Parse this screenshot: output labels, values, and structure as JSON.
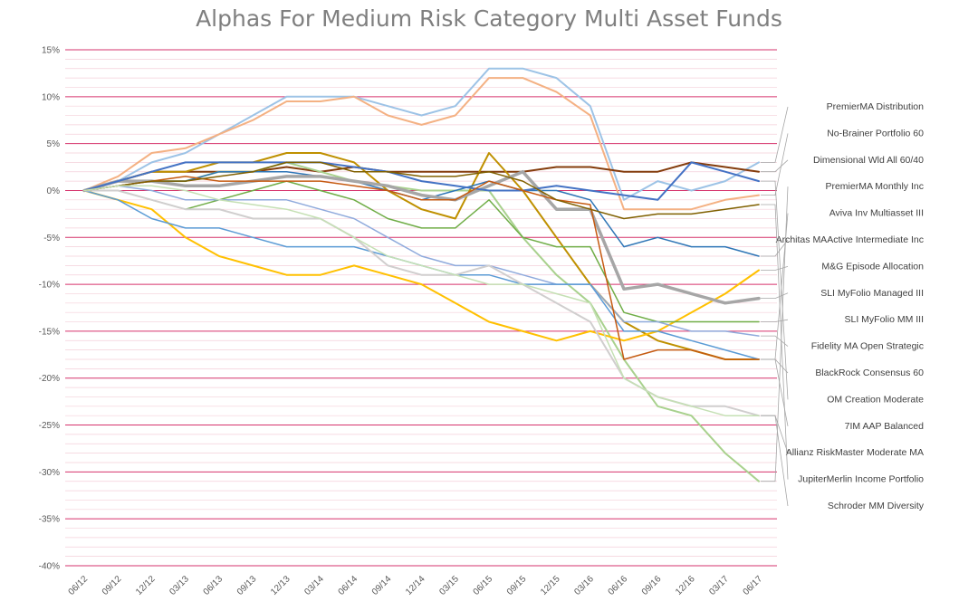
{
  "chart_data": {
    "type": "line",
    "title": "Alphas For Medium Risk Category Multi Asset Funds",
    "xlabel": "",
    "ylabel": "",
    "ylim": [
      -40,
      15
    ],
    "yticks": [
      15,
      10,
      5,
      0,
      -5,
      -10,
      -15,
      -20,
      -25,
      -30,
      -35,
      -40
    ],
    "ytick_labels": [
      "15%",
      "10%",
      "5%",
      "0%",
      "-5%",
      "-10%",
      "-15%",
      "-20%",
      "-25%",
      "-30%",
      "-35%",
      "-40%"
    ],
    "x": [
      "06/12",
      "09/12",
      "12/12",
      "03/13",
      "06/13",
      "09/13",
      "12/13",
      "03/14",
      "06/14",
      "09/14",
      "12/14",
      "03/15",
      "06/15",
      "09/15",
      "12/15",
      "03/16",
      "06/16",
      "09/16",
      "12/16",
      "03/17",
      "06/17"
    ],
    "xtick_labels": [
      "06/12",
      "09/12",
      "12/12",
      "03/13",
      "06/13",
      "09/13",
      "12/13",
      "03/14",
      "06/14",
      "09/14",
      "12/14",
      "03/15",
      "06/15",
      "09/15",
      "12/15",
      "03/16",
      "06/16",
      "09/16",
      "12/16",
      "03/17",
      "06/17"
    ],
    "grid": true,
    "legend_placement": "right",
    "series": [
      {
        "name": "PremierMA Distribution",
        "color": "#9dc3e6",
        "width": 2,
        "values": [
          0,
          1,
          3,
          4,
          6,
          8,
          10,
          10,
          10,
          9,
          8,
          9,
          13,
          13,
          12,
          9,
          -1,
          1,
          0,
          1,
          3
        ]
      },
      {
        "name": "No-Brainer Portfolio 60",
        "color": "#f4b183",
        "width": 2,
        "values": [
          0,
          1.5,
          4,
          4.5,
          6,
          7.5,
          9.5,
          9.5,
          10,
          8,
          7,
          8,
          12,
          12,
          10.5,
          8,
          -2,
          -2,
          -2,
          -1,
          -0.5
        ]
      },
      {
        "name": "Dimensional Wld All 60/40",
        "color": "#843c0c",
        "width": 2,
        "values": [
          0,
          1,
          2,
          2,
          2,
          2,
          2.5,
          2,
          2.5,
          2,
          2,
          2,
          2,
          2,
          2.5,
          2.5,
          2,
          2,
          3,
          2.5,
          2
        ]
      },
      {
        "name": "PremierMA Monthly Inc",
        "color": "#a9d18e",
        "width": 2,
        "values": [
          0,
          1,
          1,
          1,
          2,
          2,
          3,
          2,
          1,
          0.5,
          0,
          0,
          0,
          -5,
          -9,
          -12,
          -18,
          -23,
          -24,
          -28,
          -31
        ]
      },
      {
        "name": "Aviva Inv Multiasset III",
        "color": "#bf9000",
        "width": 2,
        "values": [
          0,
          1,
          2,
          2,
          3,
          3,
          4,
          4,
          3,
          0,
          -2,
          -3,
          4,
          0,
          -5,
          -10,
          -14,
          -16,
          -17,
          -18,
          -18
        ]
      },
      {
        "name": "Architas MAActive Intermediate Inc",
        "color": "#2e75b6",
        "width": 1.5,
        "values": [
          0,
          0.5,
          1,
          1,
          2,
          2,
          2,
          1.5,
          1,
          0,
          -1,
          0,
          1,
          0,
          0,
          -1,
          -6,
          -5,
          -6,
          -6,
          -7
        ]
      },
      {
        "name": "M&G Episode Allocation",
        "color": "#ffc000",
        "width": 2,
        "values": [
          0,
          -1,
          -2,
          -5,
          -7,
          -8,
          -9,
          -9,
          -8,
          -9,
          -10,
          -12,
          -14,
          -15,
          -16,
          -15,
          -16,
          -15,
          -13,
          -11,
          -8.5
        ]
      },
      {
        "name": "SLI MyFolio Managed III",
        "color": "#a6a6a6",
        "width": 3.5,
        "values": [
          0,
          1,
          1,
          0.5,
          0.5,
          1,
          1.5,
          1.5,
          1,
          0.5,
          -0.5,
          -1,
          0.5,
          2,
          -2,
          -2,
          -10.5,
          -10,
          -11,
          -12,
          -11.5
        ]
      },
      {
        "name": "SLI MyFolio MM III",
        "color": "#70ad47",
        "width": 1.5,
        "values": [
          0,
          0,
          -1,
          -2,
          -1,
          0,
          1,
          0,
          -1,
          -3,
          -4,
          -4,
          -1,
          -5,
          -6,
          -6,
          -13,
          -14,
          -14,
          -14,
          -14
        ]
      },
      {
        "name": "Fidelity MA Open Strategic",
        "color": "#8faadc",
        "width": 1.5,
        "values": [
          0,
          0.5,
          0,
          -1,
          -1,
          -1,
          -1,
          -2,
          -3,
          -5,
          -7,
          -8,
          -8,
          -9,
          -10,
          -10,
          -14,
          -14,
          -15,
          -15,
          -15.5
        ]
      },
      {
        "name": "BlackRock Consensus 60",
        "color": "#5b9bd5",
        "width": 1.5,
        "values": [
          0,
          -1,
          -3,
          -4,
          -4,
          -5,
          -6,
          -6,
          -6,
          -7,
          -8,
          -9,
          -9,
          -10,
          -10,
          -10,
          -15,
          -15,
          -16,
          -17,
          -18
        ]
      },
      {
        "name": "OM Creation Moderate",
        "color": "#4472c4",
        "width": 2,
        "values": [
          0,
          1,
          2,
          3,
          3,
          3,
          3,
          3,
          2.5,
          2,
          1,
          0.5,
          0,
          0,
          0.5,
          0,
          -0.5,
          -1,
          3,
          2,
          1
        ]
      },
      {
        "name": "7IM AAP Balanced",
        "color": "#c55a11",
        "width": 1.5,
        "values": [
          0,
          0.5,
          1,
          1.5,
          1,
          1,
          1,
          1,
          0.5,
          0,
          -1,
          -1,
          1,
          0,
          -1,
          -1.5,
          -18,
          -17,
          -17,
          -18,
          -18
        ]
      },
      {
        "name": "Allianz RiskMaster Moderate MA",
        "color": "#d0cece",
        "width": 2,
        "values": [
          0,
          0,
          -1,
          -2,
          -2,
          -3,
          -3,
          -3,
          -5,
          -8,
          -9,
          -9,
          -8,
          -10,
          -12,
          -14,
          -20,
          -22,
          -23,
          -23,
          -24
        ]
      },
      {
        "name": "JupiterMerlin Income Portfolio",
        "color": "#806000",
        "width": 1.5,
        "values": [
          0,
          0.5,
          1,
          1,
          1.5,
          2,
          3,
          3,
          2,
          2,
          1.5,
          1.5,
          2,
          1,
          -1,
          -2,
          -3,
          -2.5,
          -2.5,
          -2,
          -1.5
        ]
      },
      {
        "name": "Schroder MM Diversity",
        "color": "#c5e0b4",
        "width": 1.5,
        "values": [
          0,
          0.5,
          0.5,
          0,
          -1,
          -1.5,
          -2,
          -3,
          -5,
          -7,
          -8,
          -9,
          -10,
          -10,
          -11,
          -12,
          -20,
          -22,
          -23,
          -24,
          -24
        ]
      }
    ]
  }
}
